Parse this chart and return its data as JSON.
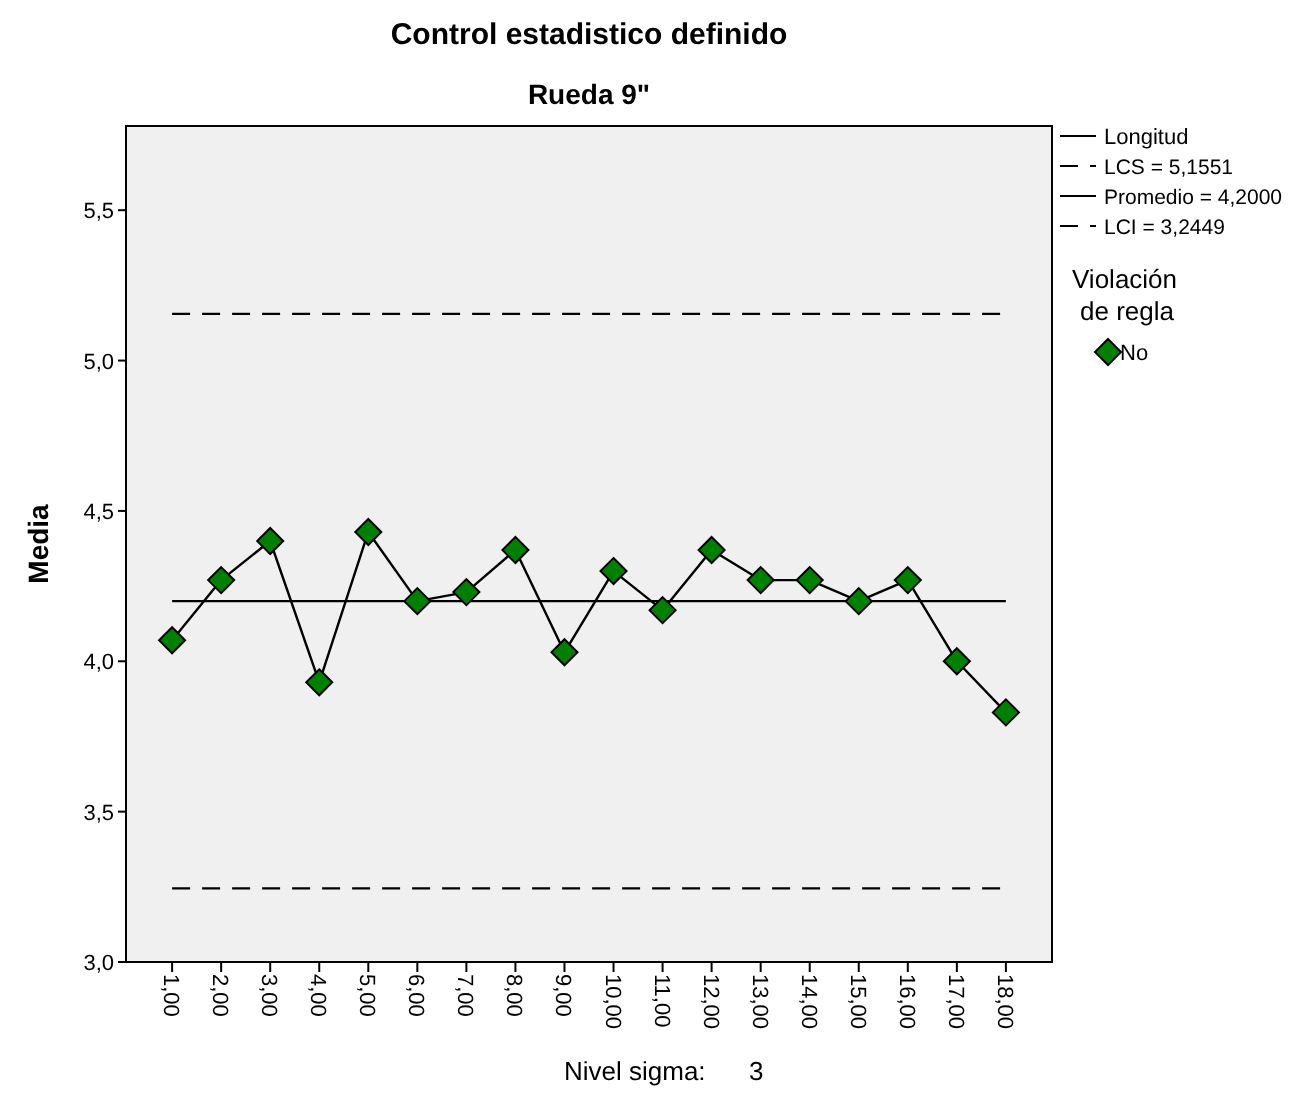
{
  "chart_data": {
    "type": "line",
    "title": "Control estadistico definido",
    "subtitle": "Rueda 9\"",
    "ylabel": "Media",
    "categories": [
      "1,00",
      "2,00",
      "3,00",
      "4,00",
      "5,00",
      "6,00",
      "7,00",
      "8,00",
      "9,00",
      "10,00",
      "11,00",
      "12,00",
      "13,00",
      "14,00",
      "15,00",
      "16,00",
      "17,00",
      "18,00"
    ],
    "series": [
      {
        "name": "Longitud",
        "type": "line",
        "color": "#000000",
        "marker": "none",
        "values": [
          4.07,
          4.27,
          4.4,
          3.93,
          4.43,
          4.2,
          4.23,
          4.37,
          4.03,
          4.3,
          4.17,
          4.37,
          4.27,
          4.27,
          4.2,
          4.27,
          4.0,
          3.83
        ]
      },
      {
        "name": "No",
        "type": "scatter",
        "color": "#008000",
        "marker": "diamond",
        "values": [
          4.07,
          4.27,
          4.4,
          3.93,
          4.43,
          4.2,
          4.23,
          4.37,
          4.03,
          4.3,
          4.17,
          4.37,
          4.27,
          4.27,
          4.2,
          4.27,
          4.0,
          3.83
        ]
      }
    ],
    "ylim": [
      3.0,
      5.78
    ],
    "yticks": [
      {
        "value": 3.0,
        "label": "3,0"
      },
      {
        "value": 3.5,
        "label": "3,5"
      },
      {
        "value": 4.0,
        "label": "4,0"
      },
      {
        "value": 4.5,
        "label": "4,5"
      },
      {
        "value": 5.0,
        "label": "5,0"
      },
      {
        "value": 5.5,
        "label": "5,5"
      }
    ],
    "ref_lines": [
      {
        "axis": "y",
        "value": 5.1551,
        "label": "LCS = 5,1551",
        "line_style": "dashed",
        "color": "#000000"
      },
      {
        "axis": "y",
        "value": 4.2,
        "label": "Promedio = 4,2000",
        "line_style": "solid",
        "color": "#000000"
      },
      {
        "axis": "y",
        "value": 3.2449,
        "label": "LCI = 3,2449",
        "line_style": "dashed",
        "color": "#000000"
      }
    ],
    "legend": "top right",
    "legend_title": "Violación de regla",
    "grid": false,
    "annotations": [
      "Nivel sigma:      3"
    ]
  }
}
